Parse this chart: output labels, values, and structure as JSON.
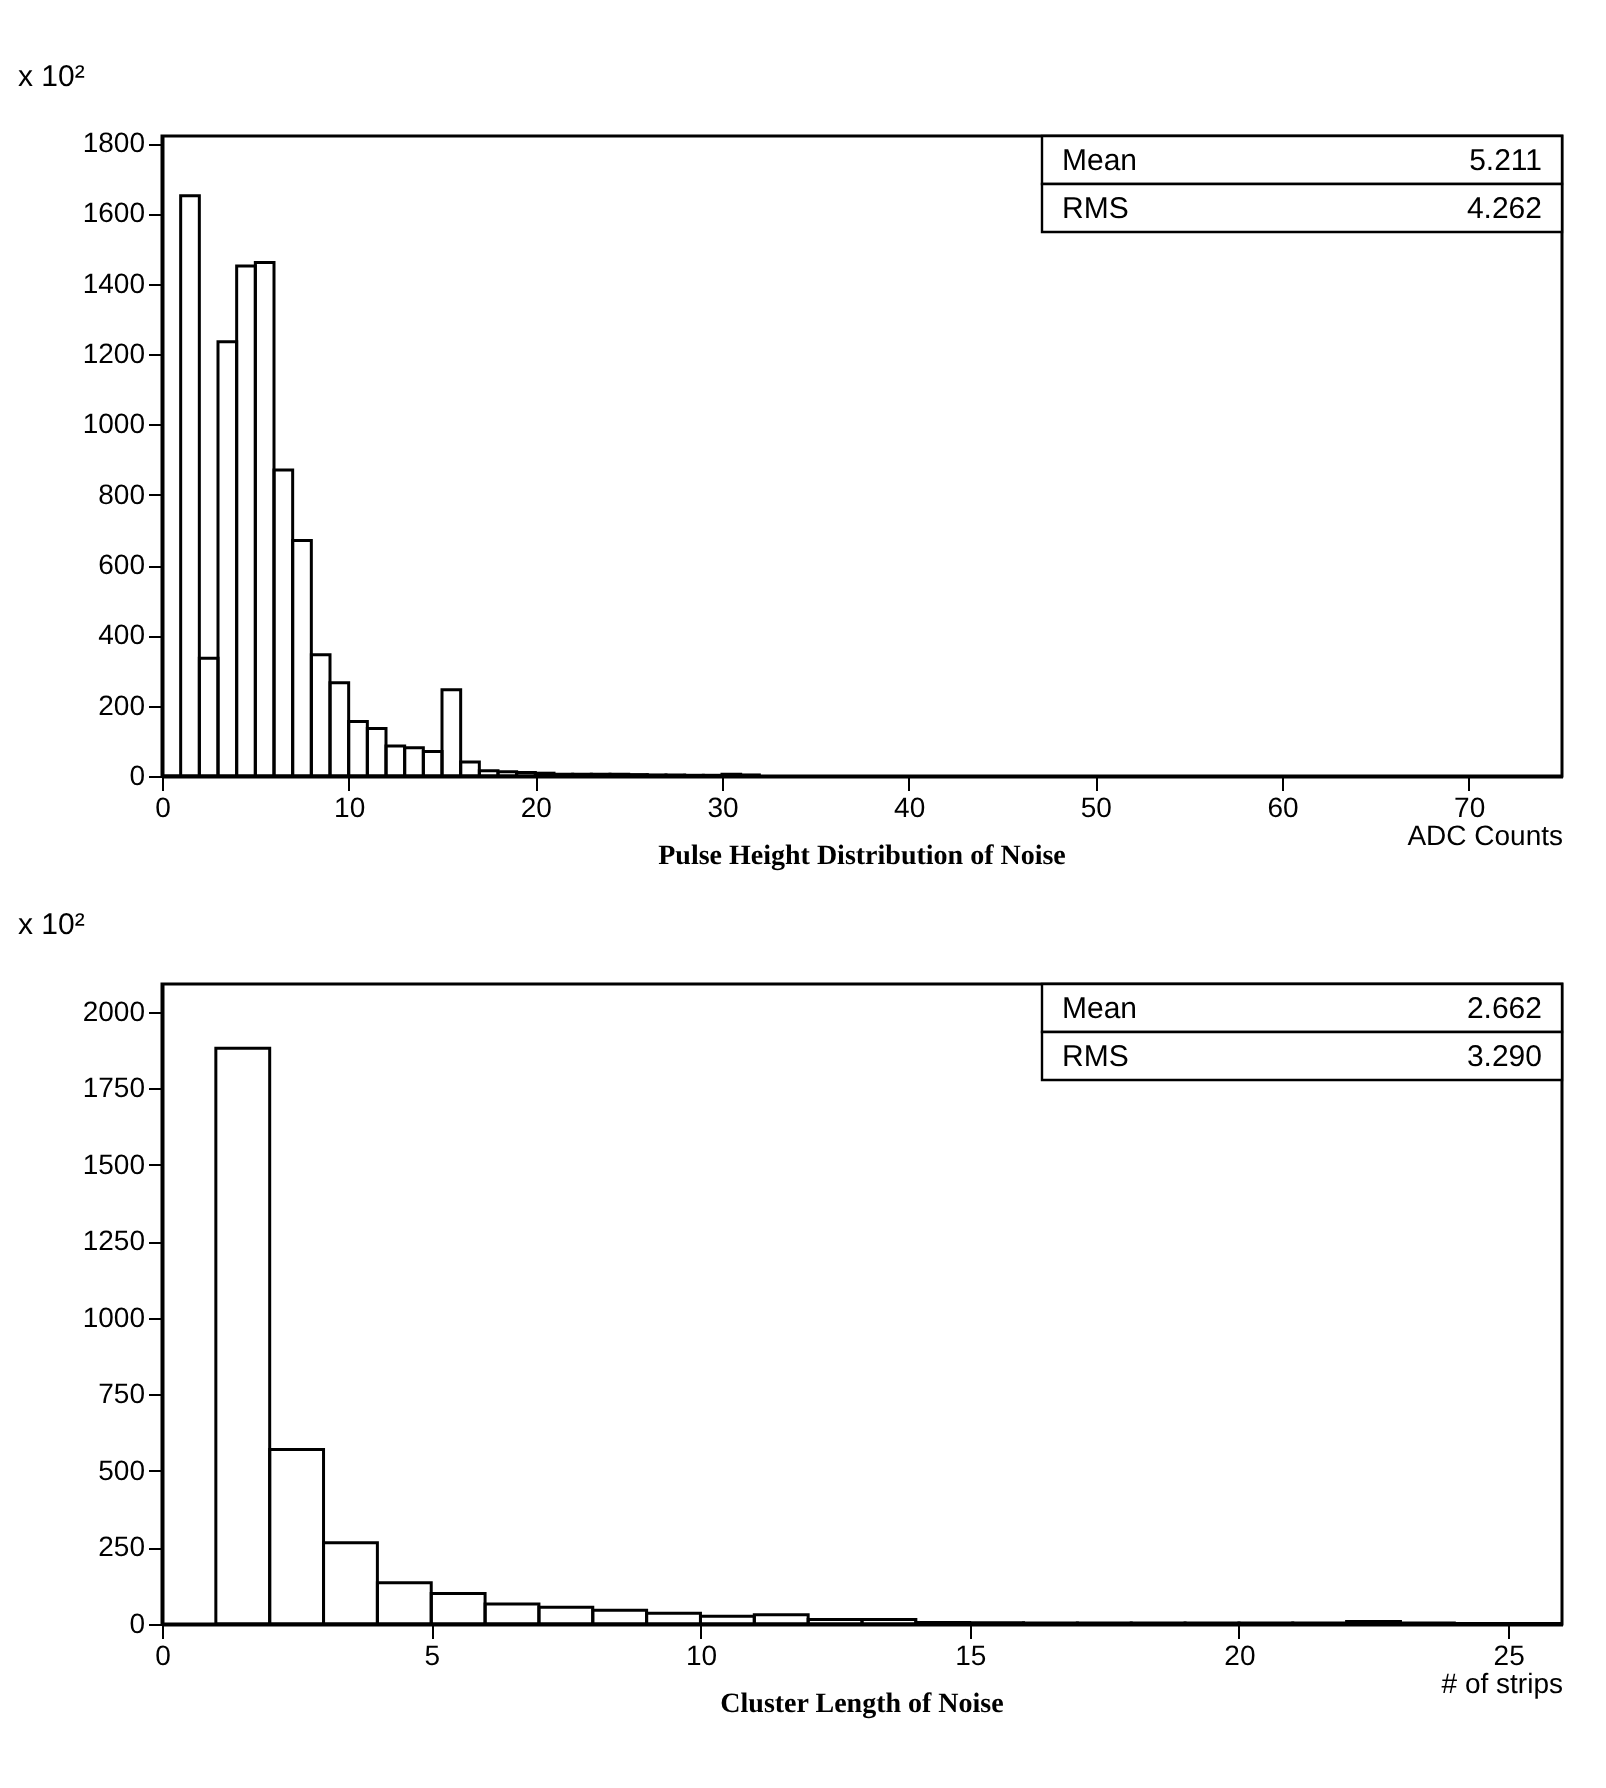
{
  "chart_data": [
    {
      "type": "histogram",
      "title": "Pulse Height Distribution of Noise",
      "xlabel": "ADC Counts",
      "annotations": [
        "x 10²",
        "Mean",
        "5.211",
        "RMS",
        "4.262"
      ],
      "bins": [
        0,
        1,
        2,
        3,
        4,
        5,
        6,
        7,
        8,
        9,
        10,
        11,
        12,
        13,
        14,
        15,
        16,
        17,
        18,
        19,
        20,
        21,
        22,
        23,
        24,
        25,
        26,
        27,
        28,
        29,
        30,
        31,
        32
      ],
      "values": [
        0,
        1650,
        335,
        1235,
        1450,
        1460,
        870,
        670,
        345,
        265,
        155,
        135,
        85,
        80,
        70,
        245,
        40,
        15,
        12,
        10,
        8,
        5,
        5,
        5,
        5,
        4,
        3,
        3,
        2,
        2,
        5,
        3
      ],
      "color": "#000000",
      "xlim": [
        0,
        75
      ],
      "xticks": [
        0,
        10,
        20,
        30,
        40,
        50,
        60,
        70
      ],
      "ylim": [
        0,
        1820
      ],
      "yticks": [
        0,
        200,
        400,
        600,
        800,
        1000,
        1200,
        1400,
        1600,
        1800
      ],
      "grid": false
    },
    {
      "type": "histogram",
      "title": "Cluster Length of Noise",
      "xlabel": "# of strips",
      "annotations": [
        "x 10²",
        "Mean",
        "2.662",
        "RMS",
        "3.290"
      ],
      "bins": [
        1,
        2,
        3,
        4,
        5,
        6,
        7,
        8,
        9,
        10,
        11,
        12,
        13,
        14,
        15,
        16,
        17,
        18,
        19,
        20,
        21,
        22,
        23,
        24,
        25,
        26
      ],
      "values": [
        1880,
        570,
        265,
        135,
        100,
        65,
        55,
        45,
        35,
        25,
        30,
        15,
        15,
        5,
        4,
        3,
        3,
        3,
        3,
        3,
        3,
        8,
        3,
        2,
        2
      ],
      "color": "#000000",
      "xlim": [
        0,
        26
      ],
      "xticks": [
        0,
        5,
        10,
        15,
        20,
        25
      ],
      "ylim": [
        0,
        2090
      ],
      "yticks": [
        0,
        250,
        500,
        750,
        1000,
        1250,
        1500,
        1750,
        2000
      ],
      "grid": false
    }
  ]
}
